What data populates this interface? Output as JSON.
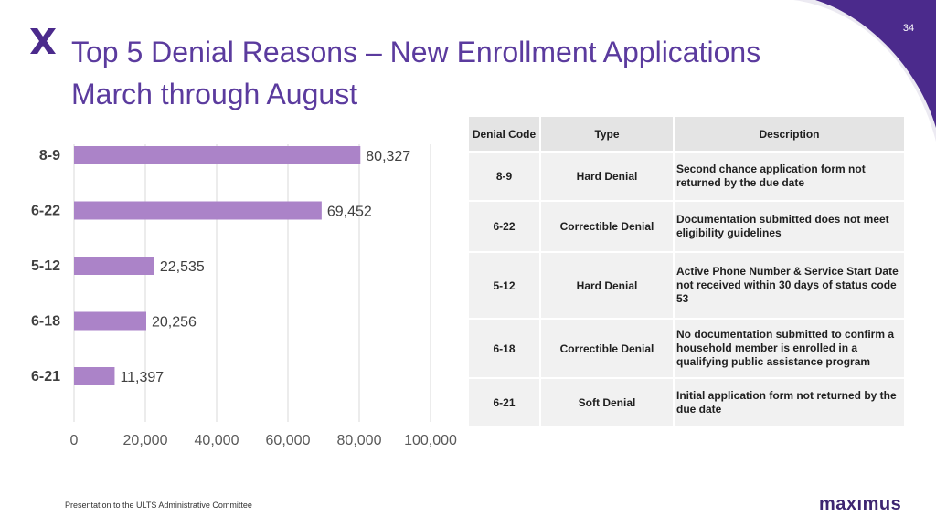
{
  "page": {
    "number": "34",
    "title_line1": "Top 5 Denial Reasons – New Enrollment Applications",
    "title_line2": "March through August",
    "footer": "Presentation to the ULTS Administrative Committee",
    "brand": "maxımus"
  },
  "colors": {
    "accent": "#5b3b9e",
    "bar": "#ab83c8",
    "corner": "#4b2a8c",
    "logo": "#4b2a8c"
  },
  "icons": {
    "logo": "maximus-x-logo"
  },
  "chart_data": {
    "type": "bar",
    "orientation": "horizontal",
    "categories": [
      "8-9",
      "6-22",
      "5-12",
      "6-18",
      "6-21"
    ],
    "values": [
      80327,
      69452,
      22535,
      20256,
      11397
    ],
    "value_labels": [
      "80,327",
      "69,452",
      "22,535",
      "20,256",
      "11,397"
    ],
    "xlim": [
      0,
      100000
    ],
    "xticks": [
      0,
      20000,
      40000,
      60000,
      80000,
      100000
    ],
    "xtick_labels": [
      "0",
      "20,000",
      "40,000",
      "60,000",
      "80,000",
      "100,000"
    ],
    "grid": true,
    "legend": "none"
  },
  "table": {
    "headers": [
      "Denial Code",
      "Type",
      "Description"
    ],
    "rows": [
      {
        "code": "8-9",
        "type": "Hard Denial",
        "description": "Second chance application form not returned by the due date"
      },
      {
        "code": "6-22",
        "type": "Correctible Denial",
        "description": "Documentation submitted does not meet eligibility guidelines"
      },
      {
        "code": "5-12",
        "type": "Hard Denial",
        "description": "Active Phone Number & Service Start Date not received within 30 days of status code 53"
      },
      {
        "code": "6-18",
        "type": "Correctible Denial",
        "description": "No documentation submitted to confirm a household member is enrolled in a qualifying public assistance program"
      },
      {
        "code": "6-21",
        "type": "Soft Denial",
        "description": "Initial application form not returned by the due date"
      }
    ]
  }
}
